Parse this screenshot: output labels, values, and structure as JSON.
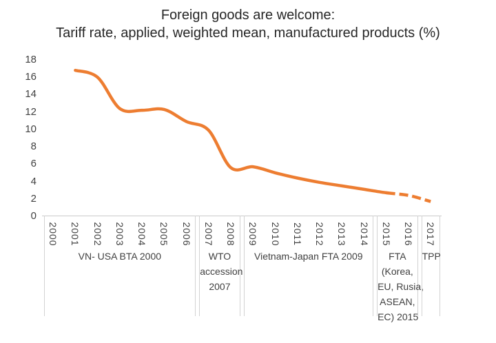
{
  "chart_data": {
    "type": "line",
    "title": "Foreign goods are welcome:",
    "subtitle": "Tariff rate, applied, weighted mean, manufactured products (%)",
    "xlabel": "",
    "ylabel": "",
    "ylim": [
      0,
      18
    ],
    "yticks": [
      0,
      2,
      4,
      6,
      8,
      10,
      12,
      14,
      16,
      18
    ],
    "grid": false,
    "legend": "none",
    "categories": [
      "2000",
      "2001",
      "2002",
      "2003",
      "2004",
      "2005",
      "2006",
      "2007",
      "2008",
      "2009",
      "2010",
      "2011",
      "2012",
      "2013",
      "2014",
      "2015",
      "2016",
      "2017"
    ],
    "series": [
      {
        "name": "Tariff rate, applied, weighted mean, manufactured products (%)",
        "values": [
          null,
          16.8,
          16.0,
          12.4,
          12.2,
          12.3,
          10.9,
          9.9,
          5.6,
          5.7,
          5.0,
          4.4,
          3.9,
          3.5,
          3.1,
          2.7,
          2.4,
          1.7
        ],
        "solid_until": "2015",
        "dashed_range": [
          "2015",
          "2017"
        ],
        "line_style_note": "solid through 2015, dashed projection 2016-2017"
      }
    ],
    "annotation_groups": [
      {
        "label": "VN- USA BTA 2000",
        "lines": [
          "VN- USA BTA 2000"
        ],
        "from": "2000",
        "to": "2006"
      },
      {
        "label": "WTO accession 2007",
        "lines": [
          "WTO",
          "accession",
          "2007"
        ],
        "from": "2007",
        "to": "2008"
      },
      {
        "label": "Vietnam-Japan FTA 2009",
        "lines": [
          "Vietnam-Japan FTA 2009"
        ],
        "from": "2009",
        "to": "2014"
      },
      {
        "label": "FTA (Korea, EU, Rusia, ASEAN, EC) 2015",
        "lines": [
          "FTA",
          "(Korea,",
          "EU, Rusia,",
          "ASEAN,",
          "EC) 2015"
        ],
        "from": "2015",
        "to": "2016"
      },
      {
        "label": "TPP",
        "lines": [
          "TPP"
        ],
        "from": "2017",
        "to": "2017"
      }
    ],
    "colors": {
      "line": "#ED7D31",
      "axis_text": "#404040",
      "title_text": "#262626",
      "border": "#CDCDCD"
    }
  }
}
